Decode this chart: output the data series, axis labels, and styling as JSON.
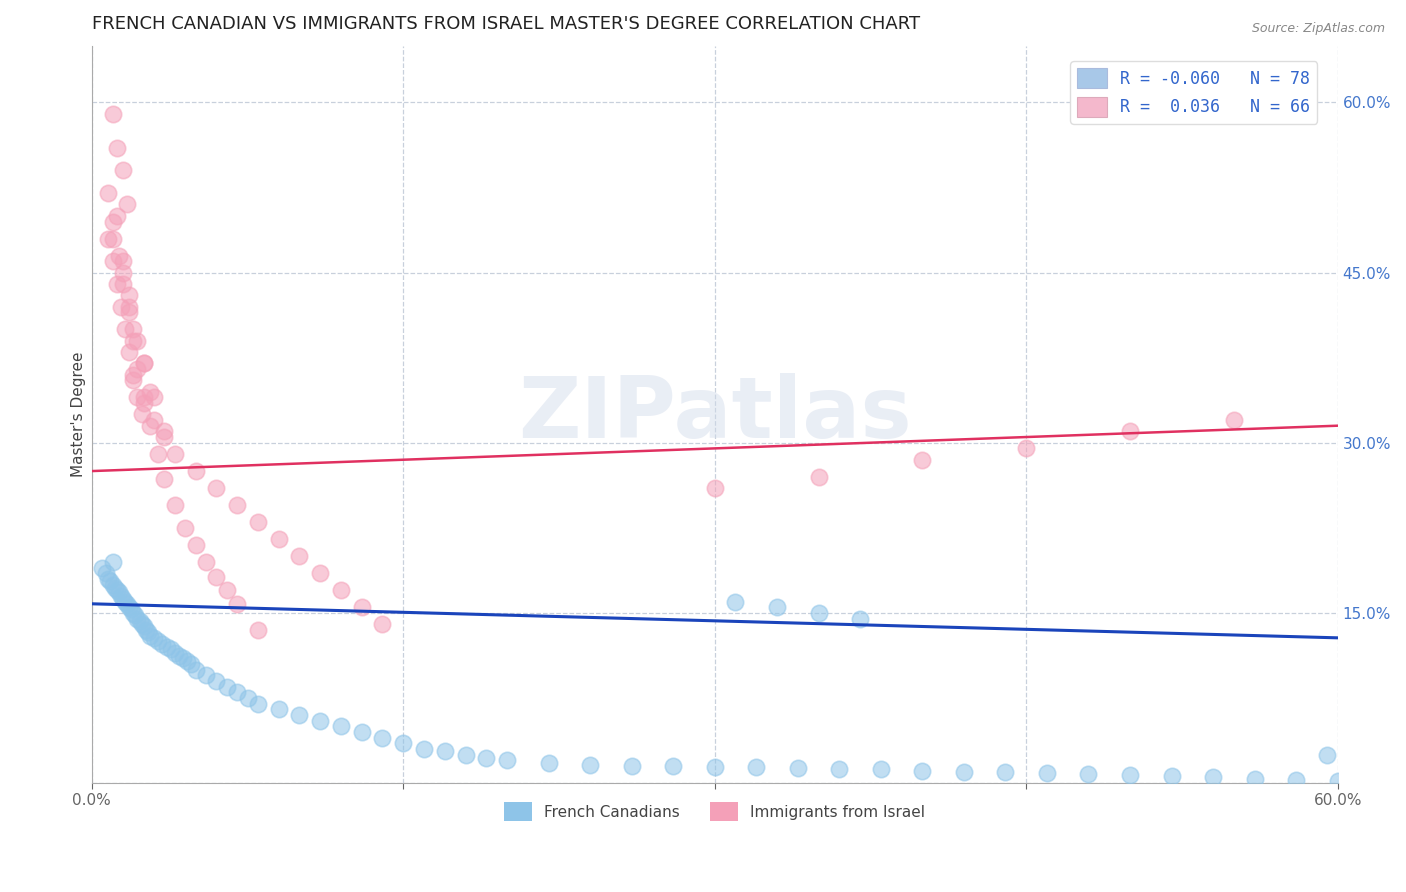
{
  "title": "FRENCH CANADIAN VS IMMIGRANTS FROM ISRAEL MASTER'S DEGREE CORRELATION CHART",
  "source_text": "Source: ZipAtlas.com",
  "ylabel": "Master's Degree",
  "xlim": [
    0.0,
    0.6
  ],
  "ylim": [
    0.0,
    0.65
  ],
  "blue_color": "#8ec4e8",
  "pink_color": "#f4a0b8",
  "blue_edge_color": "#c0d8f0",
  "pink_edge_color": "#f8c8d8",
  "trend_blue_color": "#1a44bb",
  "trend_pink_color": "#e03060",
  "grid_color": "#c8d0dc",
  "blue_trend_x0": 0.0,
  "blue_trend_y0": 0.158,
  "blue_trend_x1": 0.6,
  "blue_trend_y1": 0.128,
  "pink_trend_x0": 0.0,
  "pink_trend_y0": 0.275,
  "pink_trend_x1": 0.6,
  "pink_trend_y1": 0.315,
  "legend_R_N_blue": "R = -0.060   N = 78",
  "legend_R_N_pink": "R =  0.036   N = 66",
  "legend_blue_patch": "#a8c8e8",
  "legend_pink_patch": "#f4b8cc",
  "legend_text_color": "#3366cc",
  "watermark_text": "ZIPatlas",
  "watermark_color": "#d0daea",
  "title_fontsize": 13,
  "tick_fontsize": 11,
  "right_tick_color": "#4477cc",
  "bottom_legend_labels": [
    "French Canadians",
    "Immigrants from Israel"
  ],
  "blue_x": [
    0.005,
    0.007,
    0.008,
    0.009,
    0.01,
    0.01,
    0.011,
    0.012,
    0.013,
    0.014,
    0.015,
    0.016,
    0.017,
    0.018,
    0.019,
    0.02,
    0.021,
    0.022,
    0.023,
    0.024,
    0.025,
    0.026,
    0.027,
    0.028,
    0.03,
    0.032,
    0.034,
    0.036,
    0.038,
    0.04,
    0.042,
    0.044,
    0.046,
    0.048,
    0.05,
    0.055,
    0.06,
    0.065,
    0.07,
    0.075,
    0.08,
    0.09,
    0.1,
    0.11,
    0.12,
    0.13,
    0.14,
    0.15,
    0.16,
    0.17,
    0.18,
    0.19,
    0.2,
    0.22,
    0.24,
    0.26,
    0.28,
    0.3,
    0.32,
    0.34,
    0.36,
    0.38,
    0.4,
    0.42,
    0.44,
    0.46,
    0.48,
    0.5,
    0.52,
    0.54,
    0.56,
    0.58,
    0.595,
    0.6,
    0.31,
    0.33,
    0.35,
    0.37
  ],
  "blue_y": [
    0.19,
    0.185,
    0.18,
    0.178,
    0.175,
    0.195,
    0.172,
    0.17,
    0.168,
    0.165,
    0.162,
    0.16,
    0.158,
    0.155,
    0.153,
    0.15,
    0.148,
    0.145,
    0.143,
    0.14,
    0.138,
    0.135,
    0.133,
    0.13,
    0.128,
    0.125,
    0.123,
    0.12,
    0.118,
    0.115,
    0.112,
    0.11,
    0.108,
    0.105,
    0.1,
    0.095,
    0.09,
    0.085,
    0.08,
    0.075,
    0.07,
    0.065,
    0.06,
    0.055,
    0.05,
    0.045,
    0.04,
    0.035,
    0.03,
    0.028,
    0.025,
    0.022,
    0.02,
    0.018,
    0.016,
    0.015,
    0.015,
    0.014,
    0.014,
    0.013,
    0.012,
    0.012,
    0.011,
    0.01,
    0.01,
    0.009,
    0.008,
    0.007,
    0.006,
    0.005,
    0.004,
    0.003,
    0.025,
    0.002,
    0.16,
    0.155,
    0.15,
    0.145
  ],
  "pink_x": [
    0.01,
    0.012,
    0.015,
    0.017,
    0.008,
    0.01,
    0.012,
    0.014,
    0.016,
    0.018,
    0.02,
    0.022,
    0.024,
    0.01,
    0.015,
    0.018,
    0.022,
    0.025,
    0.028,
    0.03,
    0.012,
    0.015,
    0.018,
    0.02,
    0.025,
    0.03,
    0.035,
    0.008,
    0.01,
    0.013,
    0.015,
    0.018,
    0.02,
    0.022,
    0.025,
    0.028,
    0.032,
    0.035,
    0.04,
    0.045,
    0.05,
    0.055,
    0.06,
    0.065,
    0.07,
    0.08,
    0.3,
    0.35,
    0.4,
    0.45,
    0.5,
    0.55,
    0.02,
    0.025,
    0.035,
    0.04,
    0.05,
    0.06,
    0.07,
    0.08,
    0.09,
    0.1,
    0.11,
    0.12,
    0.13,
    0.14
  ],
  "pink_y": [
    0.59,
    0.56,
    0.54,
    0.51,
    0.48,
    0.46,
    0.44,
    0.42,
    0.4,
    0.38,
    0.36,
    0.34,
    0.325,
    0.48,
    0.45,
    0.42,
    0.39,
    0.37,
    0.345,
    0.32,
    0.5,
    0.46,
    0.43,
    0.4,
    0.37,
    0.34,
    0.31,
    0.52,
    0.495,
    0.465,
    0.44,
    0.415,
    0.39,
    0.365,
    0.34,
    0.315,
    0.29,
    0.268,
    0.245,
    0.225,
    0.21,
    0.195,
    0.182,
    0.17,
    0.158,
    0.135,
    0.26,
    0.27,
    0.285,
    0.295,
    0.31,
    0.32,
    0.355,
    0.335,
    0.305,
    0.29,
    0.275,
    0.26,
    0.245,
    0.23,
    0.215,
    0.2,
    0.185,
    0.17,
    0.155,
    0.14
  ]
}
